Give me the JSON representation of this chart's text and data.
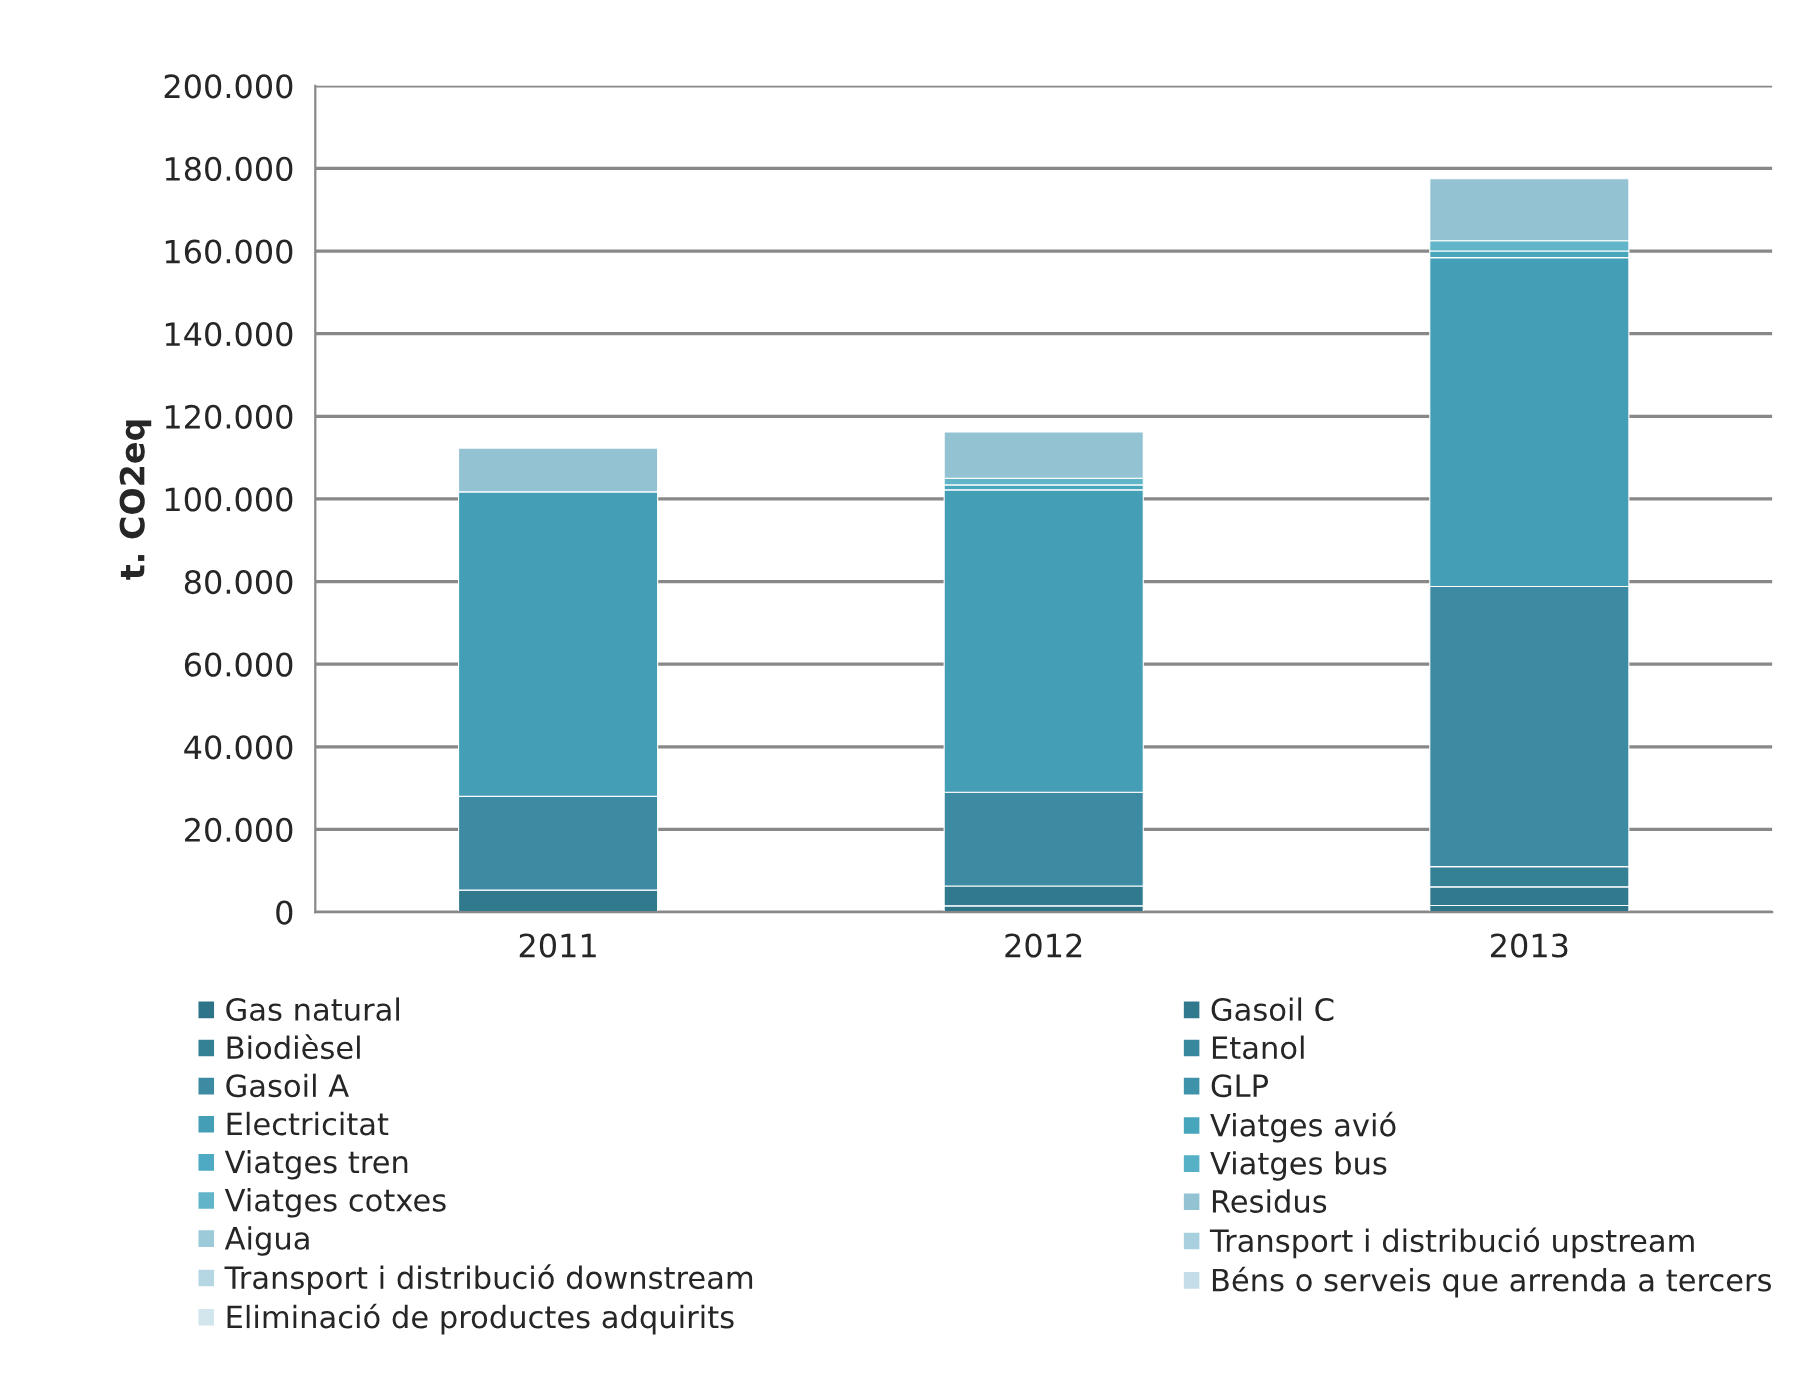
{
  "chart_data": {
    "type": "bar",
    "stacked": true,
    "ylabel": "t. CO2eq",
    "categories": [
      "2011",
      "2012",
      "2013"
    ],
    "series": [
      {
        "name": "Gas natural",
        "color": "#2e7488",
        "values": [
          null,
          1500,
          1600
        ]
      },
      {
        "name": "Gasoil C",
        "color": "#317a8e",
        "values": [
          5300,
          4800,
          4500
        ]
      },
      {
        "name": "Biodièsel",
        "color": "#348196",
        "values": [
          null,
          null,
          4900
        ]
      },
      {
        "name": "Etanol",
        "color": "#37879d",
        "values": [
          null,
          null,
          null
        ]
      },
      {
        "name": "Gasoil A",
        "color": "#3d8ba2",
        "values": [
          22700,
          22700,
          67800
        ]
      },
      {
        "name": "GLP",
        "color": "#3e92aa",
        "values": [
          null,
          null,
          null
        ]
      },
      {
        "name": "Electricitat",
        "color": "#449fb6",
        "values": [
          73700,
          73200,
          79600
        ]
      },
      {
        "name": "Viatges avió",
        "color": "#47a5bc",
        "values": [
          null,
          1200,
          1600
        ]
      },
      {
        "name": "Viatges tren",
        "color": "#4eaac2",
        "values": [
          null,
          null,
          null
        ]
      },
      {
        "name": "Viatges bus",
        "color": "#56b0c6",
        "values": [
          null,
          null,
          null
        ]
      },
      {
        "name": "Viatges cotxes",
        "color": "#62b5c9",
        "values": [
          null,
          1600,
          2500
        ]
      },
      {
        "name": "Residus",
        "color": "#93c3d3",
        "values": [
          10600,
          11200,
          15000
        ]
      },
      {
        "name": "Aigua",
        "color": "#9ccad9",
        "values": [
          null,
          null,
          null
        ]
      },
      {
        "name": "Transport i distribució upstream",
        "color": "#a8d0df",
        "values": [
          null,
          null,
          null
        ]
      },
      {
        "name": "Transport i distribució downstream",
        "color": "#b5d7e3",
        "values": [
          null,
          null,
          null
        ]
      },
      {
        "name": "Béns o serveis que arrenda a tercers",
        "color": "#c5dde8",
        "values": [
          null,
          null,
          null
        ]
      },
      {
        "name": "Eliminació de productes adquirits",
        "color": "#d3e6ee",
        "values": [
          null,
          null,
          null
        ]
      }
    ],
    "ylim": [
      0,
      200000
    ],
    "yticks": [
      {
        "value": 0,
        "label": "0"
      },
      {
        "value": 20000,
        "label": "20.000"
      },
      {
        "value": 40000,
        "label": "40.000"
      },
      {
        "value": 60000,
        "label": "60.000"
      },
      {
        "value": 80000,
        "label": "80.000"
      },
      {
        "value": 100000,
        "label": "100.000"
      },
      {
        "value": 120000,
        "label": "120.000"
      },
      {
        "value": 140000,
        "label": "140.000"
      },
      {
        "value": 160000,
        "label": "160.000"
      },
      {
        "value": 180000,
        "label": "180.000"
      },
      {
        "value": 200000,
        "label": "200.000"
      }
    ],
    "grid": "y",
    "legend": "bottom"
  }
}
